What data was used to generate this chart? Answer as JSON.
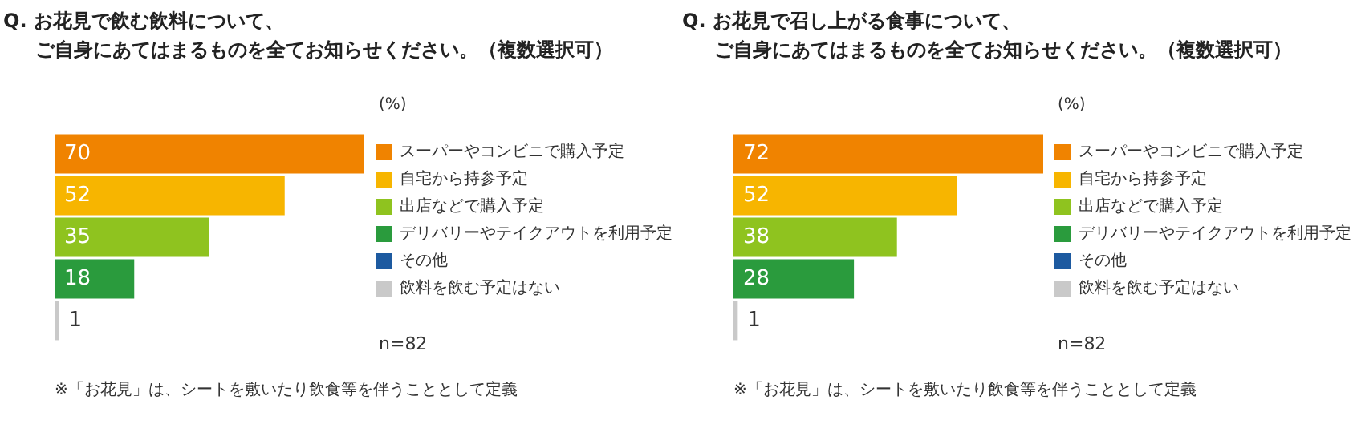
{
  "chart_data": [
    {
      "type": "bar",
      "orientation": "horizontal",
      "title": "Q. お花見で飲む飲料について、ご自身にあてはまるものを全てお知らせください。（複数選択可）",
      "categories": [
        null,
        null,
        null,
        null,
        null
      ],
      "data_labels": true,
      "legend": "right",
      "stacked": true,
      "series": [
        {
          "name": "スーパーやコンビニで購入予定",
          "color": "#f08300",
          "values": [
            70,
            null,
            null,
            null,
            null
          ]
        },
        {
          "name": "自宅から持参予定",
          "color": "#f7b500",
          "values": [
            null,
            52,
            null,
            null,
            null
          ]
        },
        {
          "name": "出店などで購入予定",
          "color": "#8fc31f",
          "values": [
            null,
            null,
            35,
            null,
            null
          ]
        },
        {
          "name": "デリバリーやテイクアウトを利用予定",
          "color": "#2a9b3d",
          "values": [
            null,
            null,
            null,
            18,
            null
          ]
        },
        {
          "name": "その他",
          "color": "#1d5aa0",
          "values": [
            null,
            null,
            null,
            null,
            null
          ]
        },
        {
          "name": "飲料を飲む予定はない",
          "color": "#c9c9c9",
          "values": [
            null,
            null,
            null,
            null,
            1
          ]
        }
      ],
      "annotations": [
        "(%)",
        "n=82",
        "※「お花見」は、シートを敷いたり飲食等を伴うこととして定義"
      ]
    },
    {
      "type": "bar",
      "orientation": "horizontal",
      "title": "Q. お花見で召し上がる食事について、ご自身にあてはまるものを全てお知らせください。（複数選択可）",
      "categories": [
        null,
        null,
        null,
        null,
        null
      ],
      "data_labels": true,
      "legend": "right",
      "stacked": true,
      "series": [
        {
          "name": "スーパーやコンビニで購入予定",
          "color": "#f08300",
          "values": [
            72,
            null,
            null,
            null,
            null
          ]
        },
        {
          "name": "自宅から持参予定",
          "color": "#f7b500",
          "values": [
            null,
            52,
            null,
            null,
            null
          ]
        },
        {
          "name": "出店などで購入予定",
          "color": "#8fc31f",
          "values": [
            null,
            null,
            38,
            null,
            null
          ]
        },
        {
          "name": "デリバリーやテイクアウトを利用予定",
          "color": "#2a9b3d",
          "values": [
            null,
            null,
            null,
            28,
            null
          ]
        },
        {
          "name": "その他",
          "color": "#1d5aa0",
          "values": [
            null,
            null,
            null,
            null,
            null
          ]
        },
        {
          "name": "飲料を飲む予定はない",
          "color": "#c9c9c9",
          "values": [
            null,
            null,
            null,
            null,
            1
          ]
        }
      ],
      "annotations": [
        "(%)",
        "n=82",
        "※「お花見」は、シートを敷いたり飲食等を伴うこととして定義"
      ]
    }
  ]
}
